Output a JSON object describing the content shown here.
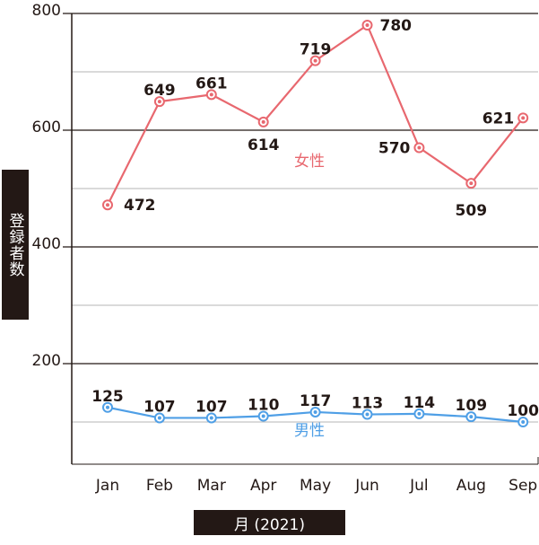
{
  "chart_data": {
    "type": "line",
    "categories": [
      "Jan",
      "Feb",
      "Mar",
      "Apr",
      "May",
      "Jun",
      "Jul",
      "Aug",
      "Sep"
    ],
    "series": [
      {
        "name": "女性",
        "color": "#e8686f",
        "values": [
          472,
          649,
          661,
          614,
          719,
          780,
          570,
          509,
          621
        ]
      },
      {
        "name": "男性",
        "color": "#4f9fe6",
        "values": [
          125,
          107,
          107,
          110,
          117,
          113,
          114,
          109,
          100
        ]
      }
    ],
    "yticks": [
      200,
      400,
      600,
      800
    ],
    "ylim": [
      0,
      800
    ],
    "ylabel": "登録者数",
    "xlabel": "月 (2021)",
    "grid": true,
    "axis_color": "#231815",
    "grid_color": "#b5b5b6"
  }
}
